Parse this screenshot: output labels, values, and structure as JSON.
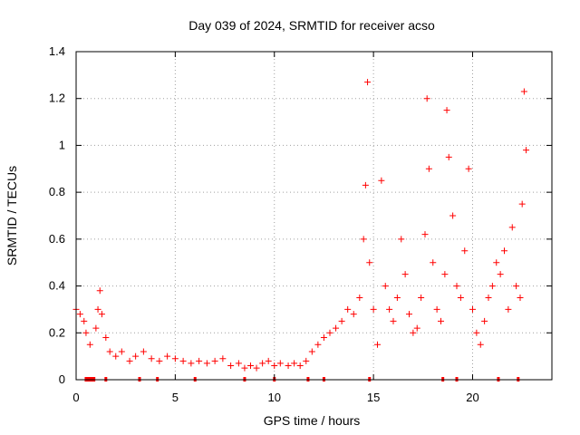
{
  "chart_data": {
    "type": "scatter",
    "title": "Day 039 of 2024, SRMTID for receiver acso",
    "xlabel": "GPS time / hours",
    "ylabel": "SRMTID / TECUs",
    "xlim": [
      0,
      24
    ],
    "ylim": [
      0,
      1.4
    ],
    "x_ticks": [
      0,
      5,
      10,
      15,
      20
    ],
    "x_tick_labels": [
      "0",
      "5",
      "10",
      "15",
      "20"
    ],
    "y_ticks": [
      0,
      0.2,
      0.4,
      0.6,
      0.8,
      1,
      1.2,
      1.4
    ],
    "y_tick_labels": [
      "0",
      "0.2",
      "0.4",
      "0.6",
      "0.8",
      "1",
      "1.2",
      "1.4"
    ],
    "grid": true,
    "marker": "+",
    "color": "#ff0000",
    "series": [
      {
        "name": "SRMTID",
        "x": [
          0.0,
          0.2,
          0.4,
          0.5,
          0.7,
          1.0,
          1.1,
          1.2,
          1.3,
          1.5,
          1.7,
          2.0,
          2.3,
          2.7,
          3.0,
          3.4,
          3.8,
          4.2,
          4.6,
          5.0,
          5.4,
          5.8,
          6.2,
          6.6,
          7.0,
          7.4,
          7.8,
          8.2,
          8.5,
          8.8,
          9.1,
          9.4,
          9.7,
          10.0,
          10.3,
          10.7,
          11.0,
          11.3,
          11.6,
          11.9,
          12.2,
          12.5,
          12.8,
          13.1,
          13.4,
          13.7,
          14.0,
          14.3,
          14.5,
          14.6,
          14.7,
          14.8,
          15.0,
          15.2,
          15.4,
          15.6,
          15.8,
          16.0,
          16.2,
          16.4,
          16.6,
          16.8,
          17.0,
          17.2,
          17.4,
          17.6,
          17.7,
          17.8,
          18.0,
          18.2,
          18.4,
          18.6,
          18.7,
          18.8,
          19.0,
          19.2,
          19.4,
          19.6,
          19.8,
          20.0,
          20.2,
          20.4,
          20.6,
          20.8,
          21.0,
          21.2,
          21.4,
          21.6,
          21.8,
          22.0,
          22.2,
          22.4,
          22.5,
          22.6,
          22.7
        ],
        "y": [
          0.3,
          0.28,
          0.25,
          0.2,
          0.15,
          0.22,
          0.3,
          0.38,
          0.28,
          0.18,
          0.12,
          0.1,
          0.12,
          0.08,
          0.1,
          0.12,
          0.09,
          0.08,
          0.1,
          0.09,
          0.08,
          0.07,
          0.08,
          0.07,
          0.08,
          0.09,
          0.06,
          0.07,
          0.05,
          0.06,
          0.05,
          0.07,
          0.08,
          0.06,
          0.07,
          0.06,
          0.07,
          0.06,
          0.08,
          0.12,
          0.15,
          0.18,
          0.2,
          0.22,
          0.25,
          0.3,
          0.28,
          0.35,
          0.6,
          0.83,
          1.27,
          0.5,
          0.3,
          0.15,
          0.85,
          0.4,
          0.3,
          0.25,
          0.35,
          0.6,
          0.45,
          0.28,
          0.2,
          0.22,
          0.35,
          0.62,
          1.2,
          0.9,
          0.5,
          0.3,
          0.25,
          0.45,
          1.15,
          0.95,
          0.7,
          0.4,
          0.35,
          0.55,
          0.9,
          0.3,
          0.2,
          0.15,
          0.25,
          0.35,
          0.4,
          0.5,
          0.45,
          0.55,
          0.3,
          0.65,
          0.4,
          0.35,
          0.75,
          1.23,
          0.98
        ]
      }
    ],
    "rug_markers_x": [
      0.5,
      0.6,
      0.7,
      0.8,
      0.9,
      1.5,
      3.2,
      4.1,
      6.0,
      8.5,
      10.0,
      11.7,
      12.5,
      14.8,
      18.5,
      19.2,
      21.3,
      22.3
    ]
  }
}
